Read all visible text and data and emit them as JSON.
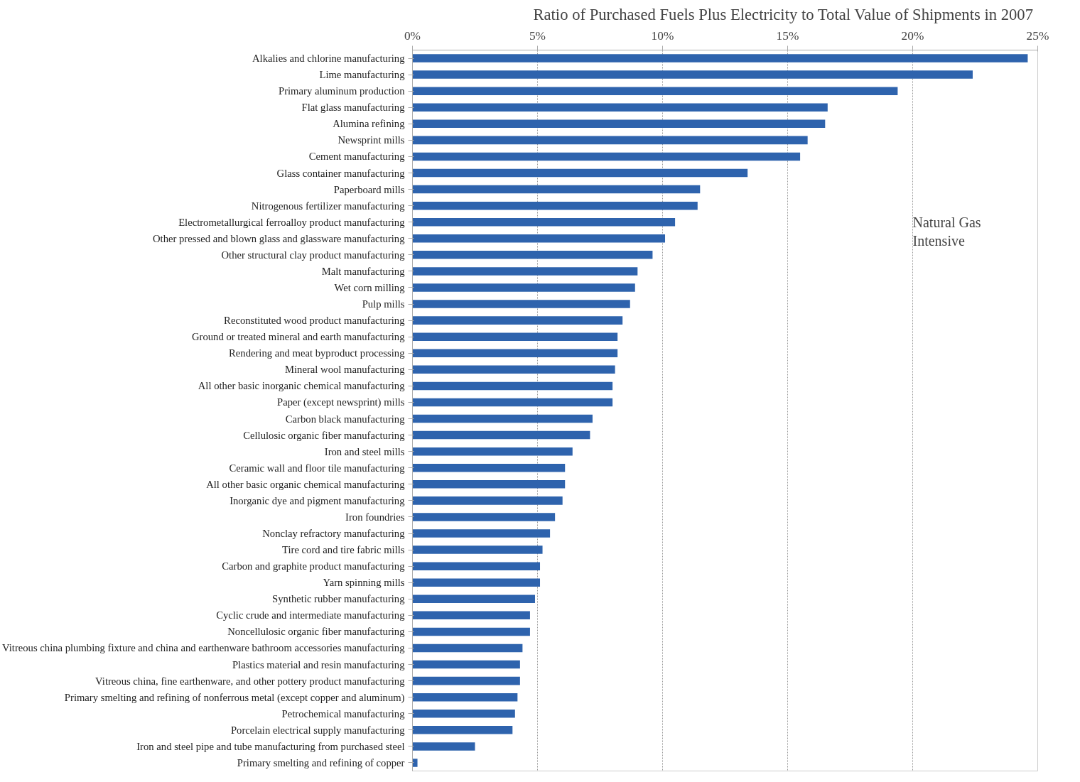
{
  "chart_data": {
    "type": "bar",
    "orientation": "horizontal",
    "title": "Ratio of Purchased Fuels Plus Electricity  to Total Value of Shipments in 2007",
    "categories": [
      "Alkalies and chlorine manufacturing",
      "Lime manufacturing",
      "Primary aluminum production",
      "Flat glass manufacturing",
      "Alumina refining",
      "Newsprint mills",
      "Cement manufacturing",
      "Glass container manufacturing",
      "Paperboard mills",
      "Nitrogenous fertilizer manufacturing",
      "Electrometallurgical ferroalloy product manufacturing",
      "Other pressed and blown glass and glassware manufacturing",
      "Other structural clay product manufacturing",
      "Malt manufacturing",
      "Wet corn milling",
      "Pulp mills",
      "Reconstituted wood product manufacturing",
      "Ground or treated mineral and earth manufacturing",
      "Rendering and meat byproduct processing",
      "Mineral wool manufacturing",
      "All other basic inorganic chemical manufacturing",
      "Paper (except newsprint) mills",
      "Carbon black manufacturing",
      "Cellulosic organic fiber manufacturing",
      "Iron and steel mills",
      "Ceramic wall and floor tile manufacturing",
      "All other basic organic chemical manufacturing",
      "Inorganic dye and pigment manufacturing",
      "Iron foundries",
      "Nonclay refractory manufacturing",
      "Tire cord and tire fabric mills",
      "Carbon and graphite product manufacturing",
      "Yarn spinning mills",
      "Synthetic rubber manufacturing",
      "Cyclic crude and intermediate manufacturing",
      "Noncellulosic organic fiber manufacturing",
      "Vitreous china plumbing fixture and china and earthenware bathroom accessories manufacturing",
      "Plastics material and resin manufacturing",
      "Vitreous china, fine earthenware, and other pottery product manufacturing",
      "Primary smelting and refining of nonferrous metal (except copper and aluminum)",
      "Petrochemical manufacturing",
      "Porcelain electrical supply manufacturing",
      "Iron and steel pipe and tube manufacturing from purchased steel",
      "Primary smelting and refining of copper"
    ],
    "values": [
      24.6,
      22.4,
      19.4,
      16.6,
      16.5,
      15.8,
      15.5,
      13.4,
      11.5,
      11.4,
      10.5,
      10.1,
      9.6,
      9.0,
      8.9,
      8.7,
      8.4,
      8.2,
      8.2,
      8.1,
      8.0,
      8.0,
      7.2,
      7.1,
      6.4,
      6.1,
      6.1,
      6.0,
      5.7,
      5.5,
      5.2,
      5.1,
      5.1,
      4.9,
      4.7,
      4.7,
      4.4,
      4.3,
      4.3,
      4.2,
      4.1,
      4.0,
      2.5,
      0.2
    ],
    "color": "#2e63ad",
    "xlim": [
      0,
      25
    ],
    "xticks": [
      {
        "value": 0,
        "label": "0%"
      },
      {
        "value": 5,
        "label": "5%"
      },
      {
        "value": 10,
        "label": "10%"
      },
      {
        "value": 15,
        "label": "15%"
      },
      {
        "value": 20,
        "label": "20%"
      },
      {
        "value": 25,
        "label": "25%"
      }
    ],
    "grid": "x",
    "annotations": [
      "Natural Gas\nIntensive"
    ]
  }
}
